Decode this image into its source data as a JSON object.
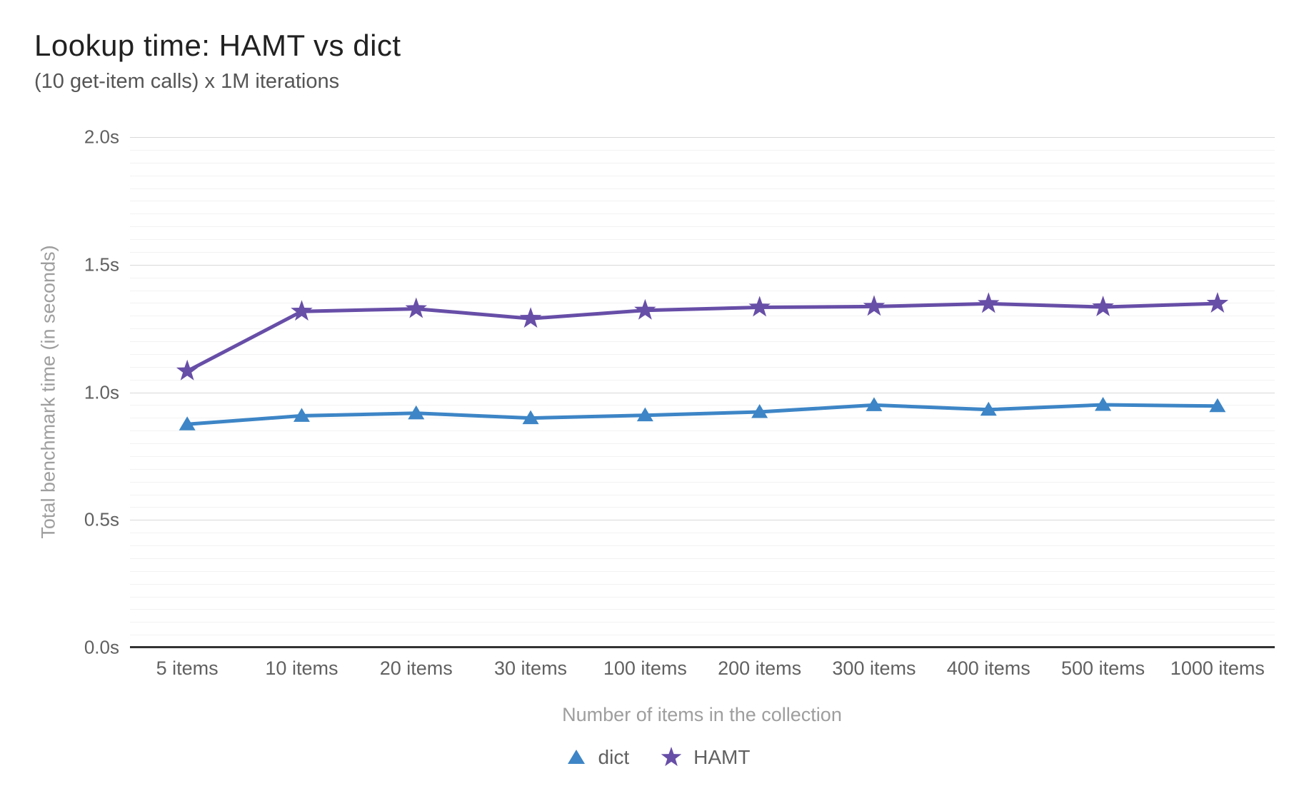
{
  "chart_data": {
    "type": "line",
    "title": "Lookup time: HAMT vs dict",
    "subtitle": "(10 get-item calls) x 1M iterations",
    "xlabel": "Number of items in the collection",
    "ylabel": "Total benchmark time (in seconds)",
    "categories": [
      "5 items",
      "10 items",
      "20 items",
      "30 items",
      "100 items",
      "200 items",
      "300 items",
      "400 items",
      "500 items",
      "1000 items"
    ],
    "series": [
      {
        "name": "dict",
        "color": "#3d85c6",
        "marker": "triangle",
        "values": [
          0.875,
          0.908,
          0.918,
          0.899,
          0.91,
          0.923,
          0.95,
          0.932,
          0.951,
          0.946
        ]
      },
      {
        "name": "HAMT",
        "color": "#674ea7",
        "marker": "star",
        "values": [
          1.083,
          1.317,
          1.327,
          1.289,
          1.321,
          1.333,
          1.336,
          1.347,
          1.334,
          1.348
        ]
      }
    ],
    "ylim": [
      0,
      2
    ],
    "yticks": [
      {
        "value": 0.0,
        "label": "0.0s"
      },
      {
        "value": 0.5,
        "label": "0.5s"
      },
      {
        "value": 1.0,
        "label": "1.0s"
      },
      {
        "value": 1.5,
        "label": "1.5s"
      },
      {
        "value": 2.0,
        "label": "2.0s"
      }
    ],
    "minor_grid_step": 0.05,
    "grid": true,
    "legend_position": "bottom"
  },
  "colors": {
    "grid_minor": "#f2f2f2",
    "grid_major": "#d9d9d9",
    "axis_line": "#333333",
    "title": "#212121",
    "subtitle": "#555555",
    "tick_label": "#616161",
    "axis_title": "#9e9e9e"
  }
}
